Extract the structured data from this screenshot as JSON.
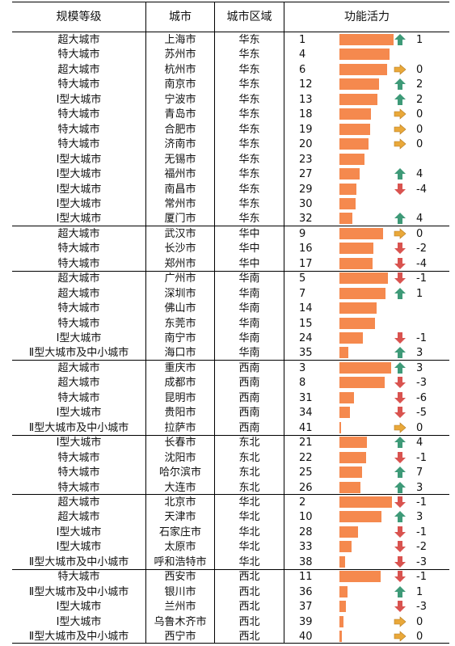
{
  "headers": {
    "scale": "规模等级",
    "city": "城市",
    "region": "城市区域",
    "vitality": "功能活力"
  },
  "colors": {
    "bar": "#f5894e",
    "up": "#3e9a78",
    "down": "#d9534f",
    "flat": "#e9a83a"
  },
  "rows": [
    {
      "scale": "超大城市",
      "city": "上海市",
      "region": "华东",
      "rank": 1,
      "change": "1",
      "trend": "up"
    },
    {
      "scale": "特大城市",
      "city": "苏州市",
      "region": "华东",
      "rank": 4,
      "change": "",
      "trend": "none"
    },
    {
      "scale": "超大城市",
      "city": "杭州市",
      "region": "华东",
      "rank": 6,
      "change": "0",
      "trend": "flat"
    },
    {
      "scale": "特大城市",
      "city": "南京市",
      "region": "华东",
      "rank": 12,
      "change": "2",
      "trend": "up"
    },
    {
      "scale": "Ⅰ型大城市",
      "city": "宁波市",
      "region": "华东",
      "rank": 13,
      "change": "2",
      "trend": "up"
    },
    {
      "scale": "特大城市",
      "city": "青岛市",
      "region": "华东",
      "rank": 18,
      "change": "0",
      "trend": "flat"
    },
    {
      "scale": "特大城市",
      "city": "合肥市",
      "region": "华东",
      "rank": 19,
      "change": "0",
      "trend": "flat"
    },
    {
      "scale": "特大城市",
      "city": "济南市",
      "region": "华东",
      "rank": 20,
      "change": "0",
      "trend": "flat"
    },
    {
      "scale": "Ⅰ型大城市",
      "city": "无锡市",
      "region": "华东",
      "rank": 23,
      "change": "",
      "trend": "none"
    },
    {
      "scale": "Ⅰ型大城市",
      "city": "福州市",
      "region": "华东",
      "rank": 27,
      "change": "4",
      "trend": "up"
    },
    {
      "scale": "Ⅰ型大城市",
      "city": "南昌市",
      "region": "华东",
      "rank": 29,
      "change": "-4",
      "trend": "down"
    },
    {
      "scale": "Ⅰ型大城市",
      "city": "常州市",
      "region": "华东",
      "rank": 30,
      "change": "",
      "trend": "none"
    },
    {
      "scale": "Ⅰ型大城市",
      "city": "厦门市",
      "region": "华东",
      "rank": 32,
      "change": "4",
      "trend": "up"
    },
    {
      "scale": "超大城市",
      "city": "武汉市",
      "region": "华中",
      "rank": 9,
      "change": "0",
      "trend": "flat"
    },
    {
      "scale": "特大城市",
      "city": "长沙市",
      "region": "华中",
      "rank": 16,
      "change": "-2",
      "trend": "down"
    },
    {
      "scale": "特大城市",
      "city": "郑州市",
      "region": "华中",
      "rank": 17,
      "change": "-4",
      "trend": "down"
    },
    {
      "scale": "超大城市",
      "city": "广州市",
      "region": "华南",
      "rank": 5,
      "change": "-1",
      "trend": "down"
    },
    {
      "scale": "超大城市",
      "city": "深圳市",
      "region": "华南",
      "rank": 7,
      "change": "1",
      "trend": "up"
    },
    {
      "scale": "特大城市",
      "city": "佛山市",
      "region": "华南",
      "rank": 14,
      "change": "",
      "trend": "none"
    },
    {
      "scale": "特大城市",
      "city": "东莞市",
      "region": "华南",
      "rank": 15,
      "change": "",
      "trend": "none"
    },
    {
      "scale": "Ⅰ型大城市",
      "city": "南宁市",
      "region": "华南",
      "rank": 24,
      "change": "-1",
      "trend": "down"
    },
    {
      "scale": "Ⅱ型大城市及中小城市",
      "city": "海口市",
      "region": "华南",
      "rank": 35,
      "change": "3",
      "trend": "up"
    },
    {
      "scale": "超大城市",
      "city": "重庆市",
      "region": "西南",
      "rank": 3,
      "change": "3",
      "trend": "up"
    },
    {
      "scale": "超大城市",
      "city": "成都市",
      "region": "西南",
      "rank": 8,
      "change": "-3",
      "trend": "down"
    },
    {
      "scale": "特大城市",
      "city": "昆明市",
      "region": "西南",
      "rank": 31,
      "change": "-6",
      "trend": "down"
    },
    {
      "scale": "Ⅰ型大城市",
      "city": "贵阳市",
      "region": "西南",
      "rank": 34,
      "change": "-5",
      "trend": "down"
    },
    {
      "scale": "Ⅱ型大城市及中小城市",
      "city": "拉萨市",
      "region": "西南",
      "rank": 41,
      "change": "0",
      "trend": "flat"
    },
    {
      "scale": "Ⅰ型大城市",
      "city": "长春市",
      "region": "东北",
      "rank": 21,
      "change": "4",
      "trend": "up"
    },
    {
      "scale": "特大城市",
      "city": "沈阳市",
      "region": "东北",
      "rank": 22,
      "change": "-1",
      "trend": "down"
    },
    {
      "scale": "特大城市",
      "city": "哈尔滨市",
      "region": "东北",
      "rank": 25,
      "change": "7",
      "trend": "up"
    },
    {
      "scale": "特大城市",
      "city": "大连市",
      "region": "东北",
      "rank": 26,
      "change": "3",
      "trend": "up"
    },
    {
      "scale": "超大城市",
      "city": "北京市",
      "region": "华北",
      "rank": 2,
      "change": "-1",
      "trend": "down"
    },
    {
      "scale": "超大城市",
      "city": "天津市",
      "region": "华北",
      "rank": 10,
      "change": "3",
      "trend": "up"
    },
    {
      "scale": "Ⅰ型大城市",
      "city": "石家庄市",
      "region": "华北",
      "rank": 28,
      "change": "-1",
      "trend": "down"
    },
    {
      "scale": "Ⅰ型大城市",
      "city": "太原市",
      "region": "华北",
      "rank": 33,
      "change": "-2",
      "trend": "down"
    },
    {
      "scale": "Ⅱ型大城市及中小城市",
      "city": "呼和浩特市",
      "region": "华北",
      "rank": 38,
      "change": "-3",
      "trend": "down"
    },
    {
      "scale": "特大城市",
      "city": "西安市",
      "region": "西北",
      "rank": 11,
      "change": "-1",
      "trend": "down"
    },
    {
      "scale": "Ⅱ型大城市及中小城市",
      "city": "银川市",
      "region": "西北",
      "rank": 36,
      "change": "1",
      "trend": "up"
    },
    {
      "scale": "Ⅰ型大城市",
      "city": "兰州市",
      "region": "西北",
      "rank": 37,
      "change": "-3",
      "trend": "down"
    },
    {
      "scale": "Ⅰ型大城市",
      "city": "乌鲁木齐市",
      "region": "西北",
      "rank": 39,
      "change": "0",
      "trend": "flat"
    },
    {
      "scale": "Ⅱ型大城市及中小城市",
      "city": "西宁市",
      "region": "西北",
      "rank": 40,
      "change": "0",
      "trend": "flat"
    }
  ]
}
